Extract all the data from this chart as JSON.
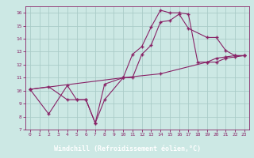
{
  "xlabel": "Windchill (Refroidissement éolien,°C)",
  "xlim": [
    -0.5,
    23.5
  ],
  "ylim": [
    7,
    16.5
  ],
  "xticks": [
    0,
    1,
    2,
    3,
    4,
    5,
    6,
    7,
    8,
    9,
    10,
    11,
    12,
    13,
    14,
    15,
    16,
    17,
    18,
    19,
    20,
    21,
    22,
    23
  ],
  "yticks": [
    7,
    8,
    9,
    10,
    11,
    12,
    13,
    14,
    15,
    16
  ],
  "background_color": "#cce8e4",
  "line_color": "#882266",
  "grid_color": "#aaccc8",
  "xlabel_bg": "#6644aa",
  "xlabel_fg": "#ffffff",
  "series": [
    {
      "x": [
        0,
        2,
        4,
        5,
        6,
        7,
        8,
        10,
        11,
        12,
        13,
        14,
        15,
        16,
        17,
        18,
        19,
        20,
        21,
        22,
        23
      ],
      "y": [
        10.1,
        10.3,
        9.3,
        9.3,
        9.3,
        7.5,
        10.5,
        11.0,
        12.8,
        13.4,
        14.9,
        16.2,
        16.0,
        16.0,
        15.9,
        12.2,
        12.2,
        12.5,
        12.6,
        12.7,
        12.7
      ]
    },
    {
      "x": [
        0,
        2,
        4,
        5,
        6,
        7,
        8,
        10,
        11,
        12,
        13,
        14,
        15,
        16,
        17,
        19,
        20,
        21,
        22,
        23
      ],
      "y": [
        10.1,
        8.2,
        10.4,
        9.3,
        9.3,
        7.5,
        9.3,
        11.0,
        11.0,
        12.8,
        13.5,
        15.3,
        15.4,
        15.9,
        14.8,
        14.1,
        14.1,
        13.1,
        12.7,
        12.7
      ]
    },
    {
      "x": [
        0,
        10,
        14,
        19,
        20,
        21,
        22,
        23
      ],
      "y": [
        10.1,
        11.0,
        11.3,
        12.2,
        12.2,
        12.5,
        12.6,
        12.7
      ]
    }
  ]
}
